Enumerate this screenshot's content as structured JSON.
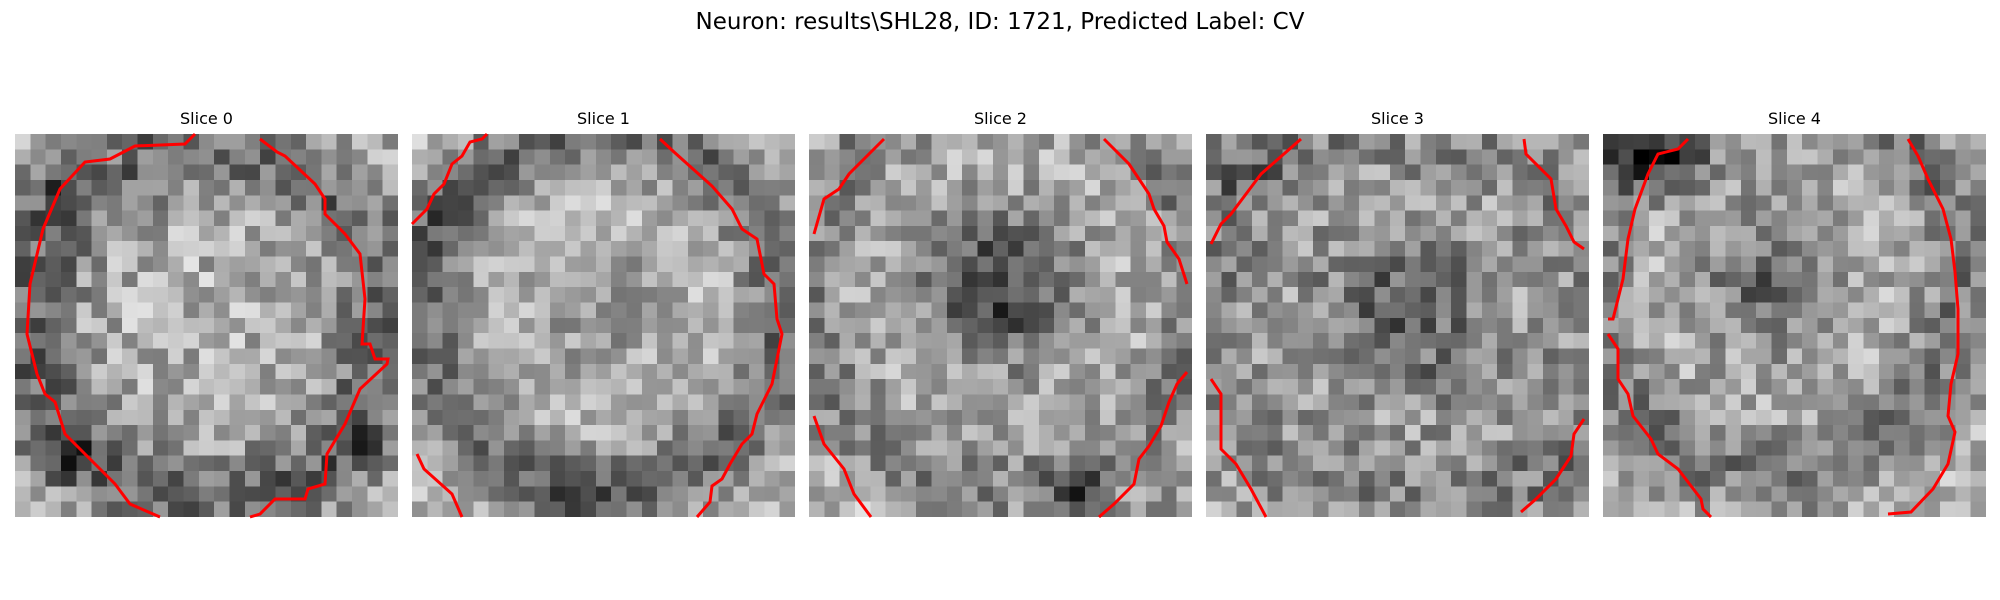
{
  "figure": {
    "title": "Neuron: results\\SHL28, ID: 1721, Predicted Label: CV"
  },
  "colors": {
    "contour": "#ff0000",
    "colormap": "gray"
  },
  "panels": [
    {
      "label": "Slice 0"
    },
    {
      "label": "Slice 1"
    },
    {
      "label": "Slice 2"
    },
    {
      "label": "Slice 3"
    },
    {
      "label": "Slice 4"
    }
  ]
}
